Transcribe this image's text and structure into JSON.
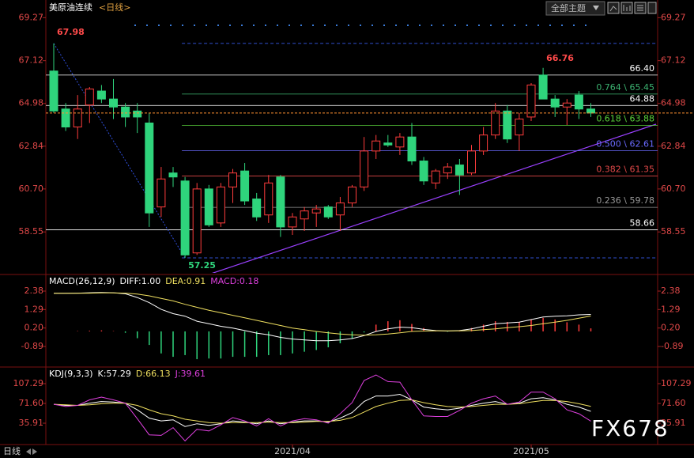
{
  "header": {
    "title": "美原油连续",
    "period": "<日线>"
  },
  "toolbar": {
    "theme_button": "全部主题"
  },
  "footer": {
    "period": "日线"
  },
  "watermark": "FX678",
  "chart_data": [
    {
      "type": "candlestick",
      "categories": [
        null,
        null,
        null,
        null,
        null,
        null,
        null,
        null,
        null,
        null,
        null,
        null,
        null,
        null,
        null,
        null,
        null,
        null,
        null,
        null,
        "2021/04",
        null,
        null,
        null,
        null,
        null,
        null,
        null,
        null,
        null,
        null,
        null,
        null,
        null,
        null,
        null,
        null,
        null,
        null,
        null,
        "2021/05",
        null,
        null,
        null,
        null,
        null
      ],
      "open": [
        66.6,
        64.7,
        63.8,
        64.9,
        65.6,
        65.2,
        64.8,
        64.6,
        64.0,
        59.8,
        61.5,
        61.1,
        57.5,
        60.7,
        59.0,
        60.8,
        61.6,
        60.2,
        59.4,
        61.3,
        58.8,
        59.2,
        59.5,
        59.8,
        59.4,
        60.0,
        60.8,
        62.6,
        63.0,
        62.8,
        63.3,
        62.1,
        61.0,
        61.5,
        61.9,
        61.5,
        62.6,
        63.4,
        64.6,
        63.4,
        64.3,
        66.4,
        65.2,
        64.8,
        65.4,
        64.7
      ],
      "high": [
        67.98,
        65.0,
        65.4,
        65.8,
        65.9,
        66.2,
        65.0,
        65.0,
        64.5,
        61.8,
        61.8,
        61.3,
        61.0,
        60.9,
        61.0,
        61.7,
        62.0,
        60.5,
        61.4,
        61.4,
        59.5,
        59.8,
        59.9,
        59.9,
        60.3,
        60.9,
        63.3,
        63.4,
        63.4,
        63.5,
        64.0,
        62.3,
        61.7,
        62.0,
        62.2,
        62.9,
        63.8,
        65.0,
        64.9,
        64.5,
        66.0,
        66.76,
        65.4,
        65.2,
        65.6,
        65.0
      ],
      "low": [
        64.5,
        63.6,
        63.2,
        64.0,
        65.0,
        64.2,
        63.8,
        63.5,
        58.8,
        59.3,
        60.8,
        57.25,
        57.4,
        58.8,
        58.8,
        60.0,
        59.9,
        59.1,
        59.0,
        58.3,
        58.4,
        58.6,
        58.8,
        59.2,
        58.6,
        59.8,
        60.6,
        62.2,
        62.8,
        62.4,
        61.9,
        60.9,
        60.7,
        61.2,
        60.4,
        61.4,
        62.4,
        63.2,
        63.0,
        62.6,
        64.1,
        65.2,
        64.3,
        63.9,
        64.2,
        64.3
      ],
      "close": [
        64.6,
        63.8,
        64.7,
        65.7,
        65.2,
        64.8,
        64.3,
        64.3,
        59.5,
        61.2,
        61.3,
        57.4,
        60.7,
        58.9,
        60.8,
        61.5,
        60.1,
        59.3,
        61.0,
        58.8,
        59.3,
        59.6,
        59.7,
        59.3,
        60.0,
        60.8,
        62.6,
        63.1,
        62.9,
        63.3,
        62.1,
        61.1,
        61.6,
        61.8,
        61.4,
        62.6,
        63.4,
        64.6,
        63.2,
        64.2,
        65.9,
        65.2,
        64.8,
        65.0,
        64.7,
        64.5
      ],
      "colors": {
        "up": "#ff3c3c",
        "down": "#2fd47c"
      },
      "ylim": [
        56.5,
        69.6
      ],
      "yticks": [
        69.27,
        67.12,
        64.98,
        62.84,
        {
          "value": 60.7,
          "label": "60.70"
        },
        58.55
      ],
      "annotations": [
        67.98,
        66.76,
        57.25
      ],
      "levels": [
        {
          "value": 66.4,
          "label": "66.40",
          "color": "#ffffff"
        },
        {
          "value": 64.88,
          "label": "64.88",
          "color": "#ffffff"
        },
        {
          "value": 58.66,
          "label": "58.66",
          "color": "#ffffff"
        }
      ],
      "fib_levels": [
        {
          "ratio": 0.764,
          "value": 65.45,
          "label": "0.764 \\ 65.45",
          "color": "#3cb371"
        },
        {
          "ratio": 0.618,
          "value": 63.88,
          "label": "0.618 \\ 63.88",
          "color": "#5bd43c"
        },
        {
          "ratio": 0.5,
          "value": 62.61,
          "label": "0.500 \\ 62.61",
          "color": "#6a6aff"
        },
        {
          "ratio": 0.382,
          "value": 61.35,
          "label": "0.382 \\ 61.35",
          "color": "#e04848"
        },
        {
          "ratio": 0.236,
          "value": 59.78,
          "label": "0.236 \\ 59.78",
          "color": "#999999"
        }
      ]
    },
    {
      "type": "macd",
      "title": "MACD(26,12,9)",
      "series": [
        {
          "name": "DIFF:1.00",
          "color": "#ffffff",
          "values": [
            2.25,
            2.25,
            2.26,
            2.28,
            2.3,
            2.28,
            2.22,
            2.0,
            1.7,
            1.3,
            1.05,
            0.9,
            0.6,
            0.45,
            0.3,
            0.2,
            0.05,
            -0.1,
            -0.2,
            -0.35,
            -0.45,
            -0.5,
            -0.55,
            -0.55,
            -0.5,
            -0.42,
            -0.25,
            0,
            0.15,
            0.25,
            0.22,
            0.12,
            0.05,
            0.02,
            0.05,
            0.15,
            0.3,
            0.45,
            0.5,
            0.55,
            0.7,
            0.85,
            0.9,
            0.92,
            0.98,
            1.0
          ]
        },
        {
          "name": "DEA:0.91",
          "color": "#f0e060",
          "values": [
            2.25,
            2.25,
            2.25,
            2.26,
            2.27,
            2.27,
            2.26,
            2.2,
            2.1,
            1.95,
            1.8,
            1.6,
            1.42,
            1.25,
            1.1,
            0.95,
            0.8,
            0.65,
            0.5,
            0.35,
            0.2,
            0.1,
            0,
            -0.08,
            -0.15,
            -0.2,
            -0.22,
            -0.2,
            -0.15,
            -0.08,
            0,
            0.02,
            0.03,
            0.03,
            0.03,
            0.05,
            0.1,
            0.15,
            0.22,
            0.28,
            0.35,
            0.45,
            0.55,
            0.65,
            0.78,
            0.91
          ]
        },
        {
          "name": "MACD:0.18",
          "color": "#e040e0",
          "values": [
            0,
            0,
            0.02,
            0.04,
            0.06,
            0.02,
            -0.08,
            -0.4,
            -0.8,
            -1.3,
            -1.5,
            -1.4,
            -1.64,
            -1.6,
            -1.6,
            -1.5,
            -1.5,
            -1.5,
            -1.4,
            -1.4,
            -1.3,
            -1.2,
            -1.1,
            -0.94,
            -0.7,
            -0.44,
            -0.06,
            0.4,
            0.6,
            0.66,
            0.44,
            0.2,
            0.04,
            -0.02,
            0.04,
            0.2,
            0.4,
            0.6,
            0.56,
            0.54,
            0.7,
            0.8,
            0.7,
            0.54,
            0.4,
            0.18
          ]
        }
      ],
      "bar_colors": {
        "up": "#ff3c3c",
        "down": "#2fd47c"
      },
      "ylim": [
        -2.01,
        3.22
      ],
      "yticks": [
        2.38,
        1.29,
        {
          "value": 0.2,
          "label": "0.20"
        },
        -0.89
      ]
    },
    {
      "type": "kdj",
      "title": "KDJ(9,3,3)",
      "series": [
        {
          "name": "K:57.29",
          "color": "#ffffff",
          "values": [
            70,
            68,
            68,
            72,
            75,
            74,
            72,
            60,
            45,
            40,
            42,
            30,
            35,
            32,
            35,
            40,
            38,
            35,
            40,
            35,
            38,
            40,
            40,
            38,
            45,
            55,
            75,
            85,
            85,
            88,
            78,
            65,
            62,
            60,
            63,
            68,
            72,
            75,
            70,
            72,
            80,
            82,
            78,
            70,
            65,
            57.29
          ]
        },
        {
          "name": "D:66.13",
          "color": "#f0e060",
          "values": [
            70,
            69,
            68,
            69,
            71,
            72,
            72,
            68,
            60,
            53,
            49,
            43,
            40,
            37,
            36,
            37,
            37,
            37,
            38,
            37,
            37,
            38,
            39,
            39,
            41,
            46,
            56,
            66,
            72,
            77,
            78,
            73,
            69,
            66,
            65,
            66,
            68,
            70,
            70,
            71,
            74,
            77,
            77,
            75,
            71,
            66.13
          ]
        },
        {
          "name": "J:39.61",
          "color": "#e040e0",
          "values": [
            70,
            66,
            68,
            78,
            83,
            78,
            72,
            44,
            15,
            14,
            28,
            4,
            25,
            22,
            33,
            46,
            40,
            31,
            44,
            31,
            40,
            44,
            42,
            36,
            53,
            73,
            113,
            123,
            111,
            110,
            78,
            49,
            48,
            48,
            59,
            72,
            80,
            85,
            70,
            74,
            92,
            92,
            80,
            60,
            53,
            39.61
          ]
        }
      ],
      "ylim": [
        -2.6,
        134.4
      ],
      "yticks": [
        107.29,
        {
          "value": 71.6,
          "label": "71.60"
        },
        35.91
      ]
    }
  ]
}
